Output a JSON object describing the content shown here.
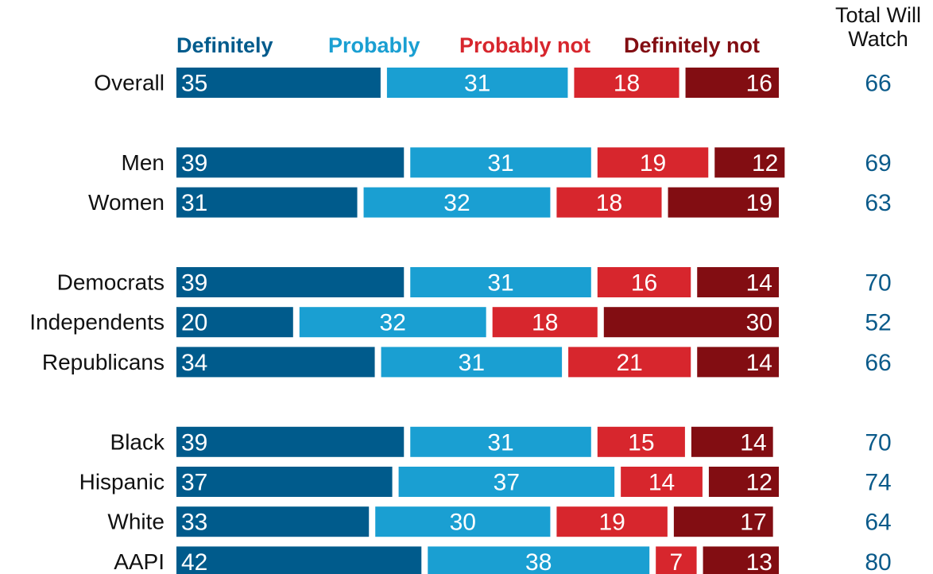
{
  "chart_data": {
    "type": "stacked-bar",
    "categories": [
      "Overall",
      null,
      "Men",
      "Women",
      null,
      "Democrats",
      "Independents",
      "Republicans",
      null,
      "Black",
      "Hispanic",
      "White",
      "AAPI"
    ],
    "series": [
      {
        "name": "Definitely",
        "color": "#005b8c",
        "values": [
          35,
          null,
          39,
          31,
          null,
          39,
          20,
          34,
          null,
          39,
          37,
          33,
          42
        ]
      },
      {
        "name": "Probably",
        "color": "#1a9fd2",
        "values": [
          31,
          null,
          31,
          32,
          null,
          31,
          32,
          31,
          null,
          31,
          37,
          30,
          38
        ]
      },
      {
        "name": "Probably not",
        "color": "#d7262d",
        "values": [
          18,
          null,
          19,
          18,
          null,
          16,
          18,
          21,
          null,
          15,
          14,
          19,
          7
        ]
      },
      {
        "name": "Definitely not",
        "color": "#820d12",
        "values": [
          16,
          null,
          12,
          19,
          null,
          14,
          30,
          14,
          null,
          14,
          12,
          17,
          13
        ]
      }
    ],
    "totals": {
      "name": "Total Will Watch",
      "color": "#0a5a8a",
      "values": [
        66,
        null,
        69,
        63,
        null,
        70,
        52,
        66,
        null,
        70,
        74,
        64,
        80
      ]
    }
  }
}
